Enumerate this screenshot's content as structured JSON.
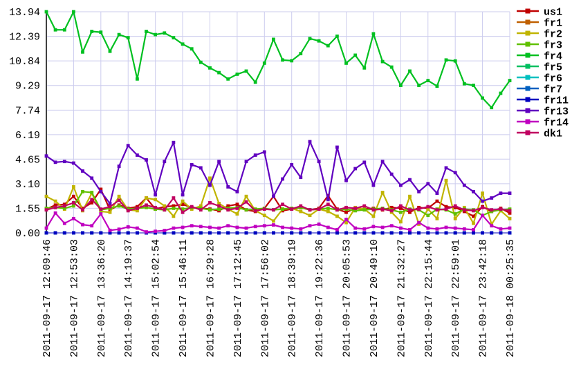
{
  "chart_data": {
    "type": "line",
    "title": "",
    "xlabel": "",
    "ylabel": "",
    "ylim": [
      0,
      13.94
    ],
    "grid": true,
    "legend_position": "right-top",
    "background_color": "#ffffff",
    "grid_color": "#ccccee",
    "axis_color": "#404040",
    "tick_label_color": "#000000",
    "marker": "square",
    "y_tick_labels": [
      "13.94",
      "12.39",
      "10.84",
      "9.29",
      "7.74",
      "6.19",
      "4.65",
      "3.10",
      "1.55",
      "0.00"
    ],
    "y_tick_values": [
      13.94,
      12.39,
      10.84,
      9.29,
      7.74,
      6.19,
      4.65,
      3.1,
      1.55,
      0.0
    ],
    "x_tick_labels": [
      "2011-09-17 12:09:46",
      "2011-09-17 12:53:03",
      "2011-09-17 13:36:20",
      "2011-09-17 14:19:37",
      "2011-09-17 15:02:54",
      "2011-09-17 15:46:11",
      "2011-09-17 16:29:28",
      "2011-09-17 17:12:45",
      "2011-09-17 17:56:02",
      "2011-09-17 18:39:19",
      "2011-09-17 19:22:36",
      "2011-09-17 20:05:53",
      "2011-09-17 20:49:10",
      "2011-09-17 21:32:27",
      "2011-09-17 22:15:44",
      "2011-09-17 22:59:01",
      "2011-09-17 23:42:18",
      "2011-09-18 00:25:35"
    ],
    "samples_per_tick_interval": 3,
    "series": [
      {
        "name": "us1",
        "color": "#c00000",
        "values": [
          1.5,
          1.75,
          1.8,
          2.3,
          1.55,
          1.9,
          2.75,
          1.45,
          1.75,
          1.55,
          1.65,
          2.2,
          1.5,
          1.65,
          1.7,
          1.8,
          1.6,
          1.55,
          1.5,
          1.4,
          1.7,
          1.8,
          1.45,
          1.35,
          1.55,
          2.3,
          1.4,
          1.5,
          1.6,
          1.45,
          1.55,
          2.35,
          1.5,
          1.3,
          1.55,
          1.5,
          1.55,
          1.45,
          1.6,
          1.55,
          1.3,
          1.6,
          1.55,
          2.0,
          1.65,
          1.6,
          1.35,
          1.05,
          1.65,
          1.35,
          1.55,
          1.25
        ]
      },
      {
        "name": "fr1",
        "color": "#c06000",
        "values": [
          0,
          0,
          0,
          0,
          0,
          0,
          0,
          0,
          0,
          0,
          0,
          0,
          0,
          0,
          0,
          0,
          0,
          0,
          0,
          0,
          0,
          0,
          0,
          0,
          0,
          0,
          0,
          0,
          0,
          0,
          0,
          0,
          0,
          0,
          0,
          0,
          0,
          0,
          0,
          0,
          0,
          0,
          0,
          0,
          0,
          0,
          0,
          0,
          0,
          0,
          0,
          0
        ]
      },
      {
        "name": "fr2",
        "color": "#c0b400",
        "values": [
          2.3,
          2.0,
          1.5,
          2.9,
          1.4,
          2.5,
          1.35,
          1.3,
          2.3,
          1.45,
          1.4,
          2.2,
          2.1,
          1.7,
          1.05,
          2.0,
          1.5,
          1.7,
          3.45,
          1.85,
          1.5,
          1.2,
          2.3,
          1.4,
          1.1,
          0.75,
          1.5,
          1.55,
          1.35,
          1.1,
          1.5,
          1.35,
          1.05,
          0.65,
          1.6,
          1.5,
          1.05,
          2.55,
          1.3,
          0.7,
          2.3,
          0.55,
          1.5,
          0.9,
          3.3,
          0.9,
          1.6,
          0.6,
          2.5,
          0.55,
          1.4,
          0.9
        ]
      },
      {
        "name": "fr3",
        "color": "#60c000",
        "values": [
          1.55,
          1.6,
          1.55,
          1.7,
          2.6,
          2.55,
          1.45,
          1.55,
          1.7,
          1.5,
          1.55,
          1.6,
          1.5,
          1.45,
          1.55,
          1.5,
          1.6,
          1.55,
          1.45,
          1.5,
          1.55,
          1.6,
          1.45,
          1.5,
          1.55,
          1.45,
          1.5,
          1.55,
          1.6,
          1.45,
          1.5,
          1.55,
          1.45,
          1.5,
          1.4,
          1.45,
          1.5,
          1.55,
          1.45,
          1.3,
          1.5,
          1.45,
          1.1,
          1.5,
          1.45,
          1.2,
          1.5,
          1.45,
          1.1,
          1.35,
          1.45,
          1.5
        ]
      },
      {
        "name": "fr4",
        "color": "#00c020",
        "values": [
          13.94,
          12.8,
          12.8,
          13.94,
          11.4,
          12.7,
          12.65,
          11.45,
          12.5,
          12.3,
          9.7,
          12.7,
          12.5,
          12.6,
          12.3,
          11.9,
          11.6,
          10.75,
          10.4,
          10.1,
          9.7,
          10.0,
          10.2,
          9.5,
          10.7,
          12.2,
          10.9,
          10.85,
          11.3,
          12.25,
          12.1,
          11.8,
          12.4,
          10.7,
          11.2,
          10.4,
          12.55,
          10.8,
          10.45,
          9.3,
          10.2,
          9.3,
          9.6,
          9.25,
          10.9,
          10.84,
          9.4,
          9.3,
          8.5,
          7.9,
          8.8,
          9.6
        ]
      },
      {
        "name": "fr5",
        "color": "#00c060",
        "values": [
          0,
          0,
          0,
          0,
          0,
          0,
          0,
          0,
          0,
          0,
          0,
          0,
          0,
          0,
          0,
          0,
          0,
          0,
          0,
          0,
          0,
          0,
          0,
          0,
          0,
          0,
          0,
          0,
          0,
          0,
          0,
          0,
          0,
          0,
          0,
          0,
          0,
          0,
          0,
          0,
          0,
          0,
          0,
          0,
          0,
          0,
          0,
          0,
          0,
          0,
          0,
          0
        ]
      },
      {
        "name": "fr6",
        "color": "#00c0c0",
        "values": [
          0,
          0,
          0,
          0,
          0,
          0,
          0,
          0,
          0,
          0,
          0,
          0,
          0,
          0,
          0,
          0,
          0,
          0,
          0,
          0,
          0,
          0,
          0,
          0,
          0,
          0,
          0,
          0,
          0,
          0,
          0,
          0,
          0,
          0,
          0,
          0,
          0,
          0,
          0,
          0,
          0,
          0,
          0,
          0,
          0,
          0,
          0,
          0,
          0,
          0,
          0,
          0
        ]
      },
      {
        "name": "fr7",
        "color": "#0060c0",
        "values": [
          0,
          0,
          0,
          0,
          0,
          0,
          0,
          0,
          0,
          0,
          0,
          0,
          0,
          0,
          0,
          0,
          0,
          0,
          0,
          0,
          0,
          0,
          0,
          0,
          0,
          0,
          0,
          0,
          0,
          0,
          0,
          0,
          0,
          0,
          0,
          0,
          0,
          0,
          0,
          0,
          0,
          0,
          0,
          0,
          0,
          0,
          0,
          0,
          0,
          0,
          0,
          0
        ]
      },
      {
        "name": "fr11",
        "color": "#0000c0",
        "values": [
          0,
          0,
          0,
          0,
          0,
          0,
          0,
          0,
          0,
          0,
          0,
          0,
          0,
          0,
          0,
          0,
          0,
          0,
          0,
          0,
          0,
          0,
          0,
          0,
          0,
          0,
          0,
          0,
          0,
          0,
          0,
          0,
          0,
          0,
          0,
          0,
          0,
          0,
          0,
          0,
          0,
          0,
          0,
          0,
          0,
          0,
          0,
          0,
          0,
          0,
          0,
          0
        ]
      },
      {
        "name": "fr13",
        "color": "#6000c0",
        "values": [
          4.85,
          4.45,
          4.5,
          4.4,
          3.9,
          3.45,
          2.6,
          1.85,
          4.2,
          5.5,
          4.9,
          4.6,
          2.4,
          4.5,
          5.7,
          2.4,
          4.3,
          4.1,
          3.0,
          4.5,
          2.9,
          2.6,
          4.5,
          4.9,
          5.1,
          2.3,
          3.4,
          4.3,
          3.5,
          5.75,
          4.5,
          2.1,
          5.4,
          3.3,
          4.05,
          4.45,
          3.0,
          4.5,
          3.7,
          3.0,
          3.35,
          2.6,
          3.1,
          2.5,
          4.1,
          3.8,
          3.0,
          2.6,
          2.0,
          2.2,
          2.5,
          2.5
        ]
      },
      {
        "name": "fr14",
        "color": "#c000c0",
        "values": [
          0.3,
          1.25,
          0.6,
          0.9,
          0.52,
          0.45,
          1.2,
          0.16,
          0.23,
          0.38,
          0.3,
          0.06,
          0.1,
          0.15,
          0.3,
          0.35,
          0.45,
          0.4,
          0.35,
          0.3,
          0.45,
          0.35,
          0.3,
          0.4,
          0.45,
          0.5,
          0.35,
          0.3,
          0.25,
          0.45,
          0.55,
          0.35,
          0.2,
          0.85,
          0.3,
          0.25,
          0.4,
          0.35,
          0.45,
          0.3,
          0.2,
          0.65,
          0.3,
          0.25,
          0.35,
          0.3,
          0.25,
          0.2,
          1.1,
          0.45,
          0.25,
          0.3
        ]
      },
      {
        "name": "dk1",
        "color": "#c00060",
        "values": [
          1.45,
          1.6,
          1.7,
          1.9,
          1.45,
          2.1,
          1.5,
          1.65,
          2.05,
          1.4,
          1.55,
          1.75,
          1.6,
          1.45,
          2.2,
          1.3,
          1.65,
          1.45,
          1.9,
          1.7,
          1.45,
          1.55,
          1.95,
          1.4,
          1.5,
          1.45,
          1.8,
          1.5,
          1.7,
          1.45,
          1.5,
          1.8,
          1.45,
          1.6,
          1.55,
          1.7,
          1.45,
          1.5,
          1.4,
          1.7,
          1.45,
          1.5,
          1.65,
          1.45,
          1.5,
          1.7,
          1.45,
          1.4,
          1.6,
          1.45,
          1.5,
          1.4
        ]
      }
    ]
  }
}
